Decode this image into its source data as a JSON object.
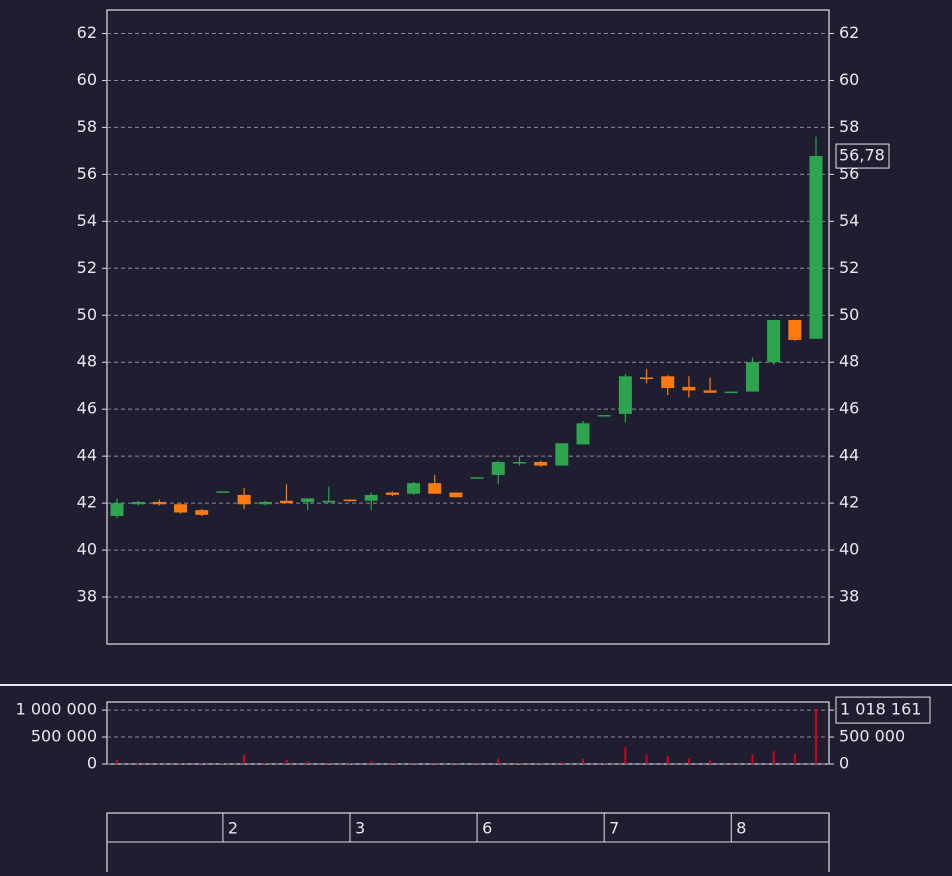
{
  "chart_data": [
    {
      "type": "candlestick",
      "categories": [
        null,
        null,
        null,
        null,
        null,
        "2",
        null,
        null,
        null,
        null,
        null,
        "3",
        null,
        null,
        null,
        null,
        null,
        "6",
        null,
        null,
        null,
        null,
        null,
        "7",
        null,
        null,
        null,
        null,
        null,
        "8",
        null,
        null,
        null,
        null
      ],
      "open": [
        41.45,
        41.95,
        42.05,
        41.95,
        41.7,
        42.5,
        42.35,
        41.95,
        42.1,
        42.05,
        42.1,
        42.15,
        42.1,
        42.45,
        42.4,
        42.85,
        42.45,
        43.1,
        43.2,
        43.7,
        43.75,
        43.6,
        44.5,
        45.75,
        45.8,
        47.35,
        47.4,
        46.95,
        46.8,
        46.75,
        46.75,
        48.0,
        49.8,
        49.0
      ],
      "high": [
        42.2,
        42.1,
        42.15,
        42.0,
        41.75,
        42.5,
        42.65,
        42.1,
        42.8,
        42.2,
        42.7,
        42.15,
        42.45,
        42.5,
        42.9,
        43.2,
        42.45,
        43.1,
        43.8,
        44.0,
        43.8,
        44.55,
        45.5,
        45.75,
        47.5,
        47.7,
        47.45,
        47.4,
        47.35,
        46.75,
        48.2,
        49.8,
        49.8,
        57.6
      ],
      "low": [
        41.35,
        41.9,
        41.9,
        41.55,
        41.45,
        42.5,
        41.75,
        41.9,
        42.0,
        41.7,
        42.0,
        42.05,
        41.7,
        42.3,
        42.35,
        42.4,
        42.25,
        43.1,
        42.8,
        43.6,
        43.55,
        43.6,
        44.5,
        45.75,
        45.45,
        47.1,
        46.6,
        46.5,
        46.7,
        46.75,
        46.75,
        47.9,
        48.9,
        49.0
      ],
      "close": [
        42.0,
        42.05,
        41.95,
        41.6,
        41.5,
        42.5,
        41.95,
        42.05,
        42.0,
        42.2,
        42.1,
        42.1,
        42.35,
        42.35,
        42.85,
        42.4,
        42.25,
        43.1,
        43.75,
        43.75,
        43.6,
        44.55,
        45.4,
        45.75,
        47.4,
        47.3,
        46.9,
        46.8,
        46.7,
        46.75,
        48.0,
        49.8,
        48.95,
        56.78
      ],
      "last_close_label": "56,78",
      "up_color": "#2ea44f",
      "down_color": "#ff7a10",
      "ylim": [
        36,
        63
      ],
      "yticks": [
        38,
        40,
        42,
        44,
        46,
        48,
        50,
        52,
        54,
        56,
        58,
        60,
        62
      ],
      "grid": true
    },
    {
      "type": "bar",
      "values": [
        80000,
        20000,
        20000,
        20000,
        20000,
        20000,
        170000,
        20000,
        80000,
        50000,
        20000,
        20000,
        50000,
        20000,
        20000,
        20000,
        20000,
        20000,
        100000,
        20000,
        20000,
        40000,
        100000,
        20000,
        310000,
        170000,
        150000,
        110000,
        60000,
        20000,
        180000,
        240000,
        190000,
        1018161
      ],
      "last_value_label": "1 018 161",
      "color": "#d0021b",
      "ylim": [
        0,
        1150000
      ],
      "yticks": [
        0,
        {
          "value": 500000,
          "label": "500 000"
        },
        {
          "value": 1000000,
          "label": "1 000 000"
        }
      ],
      "grid": true
    }
  ]
}
